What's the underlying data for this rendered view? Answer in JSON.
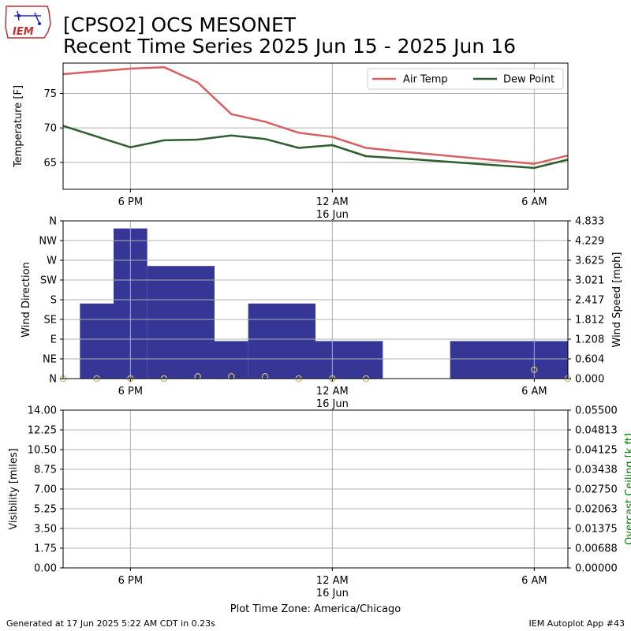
{
  "header": {
    "title_line1": "[CPSO2] OCS MESONET",
    "title_line2": "Recent Time Series 2025 Jun 15 - 2025 Jun 16",
    "logo_text": "IEM"
  },
  "footer": {
    "generated": "Generated at 17 Jun 2025 5:22 AM CDT in 0.23s",
    "app": "IEM Autoplot App #43"
  },
  "colors": {
    "air_temp": "#d76060",
    "dew_point": "#2e5e2e",
    "wind_bar": "#363696",
    "wind_dir_marker": "#c8bc6e",
    "ceiling_label": "#008000",
    "grid": "#b0b0b0"
  },
  "chart_data": [
    {
      "type": "line",
      "x_hours": [
        15,
        17,
        18,
        19,
        20,
        21,
        22,
        23,
        24,
        25,
        29,
        30
      ],
      "x_domain_hours": [
        15,
        30
      ],
      "x_ticks": [
        {
          "hour": 17,
          "label": "6 PM",
          "sublabel": ""
        },
        {
          "hour": 23,
          "label": "12 AM",
          "sublabel": "16 Jun"
        },
        {
          "hour": 29,
          "label": "6 AM",
          "sublabel": ""
        }
      ],
      "series": [
        {
          "name": "Air Temp",
          "values": [
            77.8,
            78.6,
            78.8,
            76.6,
            72.0,
            70.9,
            69.3,
            68.7,
            67.1,
            66.6,
            64.8,
            66.0
          ]
        },
        {
          "name": "Dew Point",
          "values": [
            70.3,
            67.2,
            68.2,
            68.3,
            68.9,
            68.4,
            67.1,
            67.5,
            65.9,
            65.6,
            64.2,
            65.4
          ]
        }
      ],
      "ylabel": "Temperature [F]",
      "ylim": [
        61.1,
        79.4
      ],
      "yticks": [
        65,
        70,
        75
      ],
      "legend": "top-right",
      "grid": true
    },
    {
      "type": "bar",
      "bars": [
        {
          "start": 15.5,
          "end": 16.5,
          "speed": 2.3
        },
        {
          "start": 16.5,
          "end": 17.5,
          "speed": 4.6
        },
        {
          "start": 17.5,
          "end": 19.5,
          "speed": 3.45
        },
        {
          "start": 19.5,
          "end": 20.5,
          "speed": 1.15
        },
        {
          "start": 20.5,
          "end": 22.5,
          "speed": 2.3
        },
        {
          "start": 22.5,
          "end": 24.5,
          "speed": 1.15
        },
        {
          "start": 26.5,
          "end": 30,
          "speed": 1.15
        }
      ],
      "direction_points": [
        {
          "hour": 15,
          "deg": 0
        },
        {
          "hour": 16,
          "deg": 0
        },
        {
          "hour": 17,
          "deg": 0
        },
        {
          "hour": 18,
          "deg": 0
        },
        {
          "hour": 19,
          "deg": 5
        },
        {
          "hour": 20,
          "deg": 5
        },
        {
          "hour": 21,
          "deg": 5
        },
        {
          "hour": 22,
          "deg": 0
        },
        {
          "hour": 23,
          "deg": 0
        },
        {
          "hour": 24,
          "deg": 0
        },
        {
          "hour": 29,
          "deg": 20
        },
        {
          "hour": 30,
          "deg": 0
        }
      ],
      "ylabel_left": "Wind Direction",
      "ylabel_right": "Wind Speed [mph]",
      "direction_ticks": [
        "N",
        "NE",
        "E",
        "SE",
        "S",
        "SW",
        "W",
        "NW",
        "N"
      ],
      "speed_ticks": [
        "0.000",
        "0.604",
        "1.208",
        "1.812",
        "2.417",
        "3.021",
        "3.625",
        "4.229",
        "4.833"
      ],
      "speed_max": 4.833,
      "direction_max_deg": 360,
      "grid": true
    },
    {
      "type": "line",
      "series": [],
      "ylabel_left": "Visibility [miles]",
      "ylabel_right": "Overcast Ceiling [k ft]",
      "ylim_left": [
        0,
        14
      ],
      "ylim_right": [
        0,
        0.055
      ],
      "left_ticks": [
        "0.00",
        "1.75",
        "3.50",
        "5.25",
        "7.00",
        "8.75",
        "10.50",
        "12.25",
        "14.00"
      ],
      "right_ticks": [
        "0.00000",
        "0.00688",
        "0.01375",
        "0.02063",
        "0.02750",
        "0.03438",
        "0.04125",
        "0.04813",
        "0.05500"
      ],
      "xlabel": "Plot Time Zone: America/Chicago",
      "grid": true
    }
  ]
}
